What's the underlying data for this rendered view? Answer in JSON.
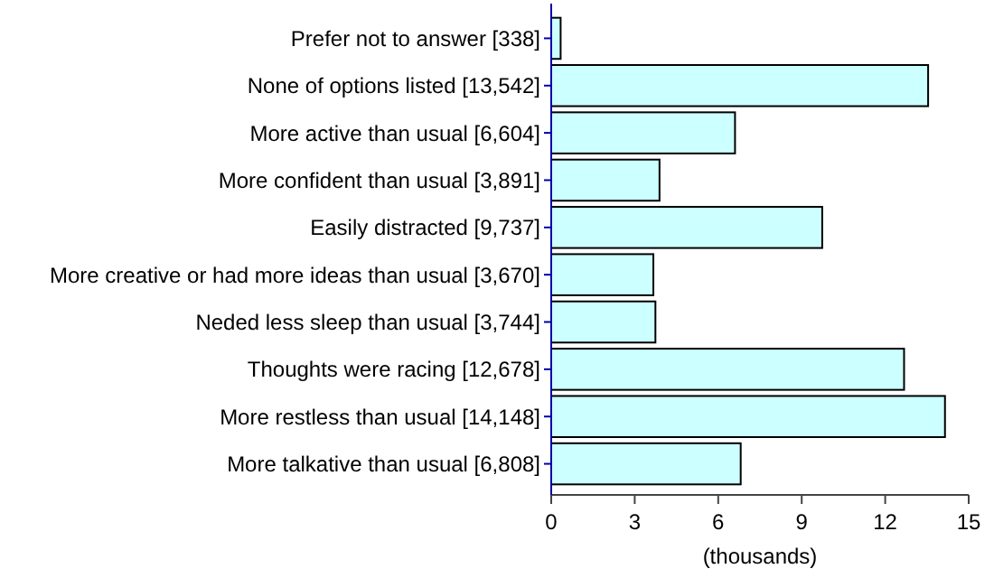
{
  "chart_data": {
    "type": "bar",
    "orientation": "horizontal",
    "xlabel": "(thousands)",
    "categories": [
      "Prefer not to answer [338]",
      "None of options listed [13,542]",
      "More active than usual [6,604]",
      "More confident than usual [3,891]",
      "Easily distracted [9,737]",
      "More creative or had more ideas than usual [3,670]",
      "Neded less sleep than usual [3,744]",
      "Thoughts were racing [12,678]",
      "More restless than usual [14,148]",
      "More talkative than usual [6,808]"
    ],
    "values": [
      0.338,
      13.542,
      6.604,
      3.891,
      9.737,
      3.67,
      3.744,
      12.678,
      14.148,
      6.808
    ],
    "color": "#ccffff",
    "xlim": [
      0,
      15
    ],
    "xticks": [
      0,
      3,
      6,
      9,
      12,
      15
    ],
    "grid": false
  }
}
